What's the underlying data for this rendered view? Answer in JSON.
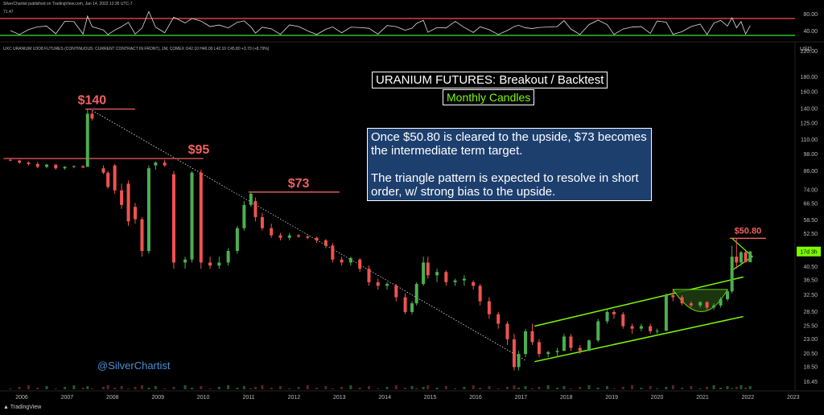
{
  "header": {
    "published": "SilverChartist published on TradingView.com, Jan 14, 2022 12:35 UTC-7",
    "rsi_value": "71.47",
    "symbol_line": "UXC URANIUM U3O8 FUTURES (CONTINUOUS: CURRENT CONTRACT IN FRONT), 1M, COMEX  O42.10 H46.00 L42.10 C45.80 +3.70 (+8.79%)",
    "currency": "USD",
    "logo_text": "TradingView"
  },
  "annotations": {
    "title": "URANIUM FUTURES: Breakout / Backtest",
    "subtitle": "Monthly Candles",
    "note_p1": "Once $50.80 is cleared to the upside, $73 becomes the intermediate term target.",
    "note_p2": "The triangle pattern is expected to resolve in short order, w/ strong bias to the upside.",
    "watermark": "@SilverChartist"
  },
  "colors": {
    "up": "#4caf50",
    "down": "#ef5350",
    "level": "#f06060",
    "channel": "#7CFC00",
    "rsi_upper": "#ff4d4d",
    "rsi_lower": "#39e639",
    "current_badge": "#7CFC00"
  },
  "chart_data": {
    "type": "candlestick",
    "scale": "log",
    "ylim": [
      16.45,
      220
    ],
    "xlim": [
      2005.6,
      2023.4
    ],
    "y_ticks": [
      "220.00",
      "180.00",
      "160.00",
      "140.00",
      "125.00",
      "110.00",
      "98.00",
      "86.00",
      "74.00",
      "66.50",
      "58.50",
      "52.50",
      "46.50",
      "40.50",
      "36.50",
      "32.50",
      "28.50",
      "25.50",
      "23.00",
      "20.50",
      "18.50",
      "16.45"
    ],
    "x_ticks": [
      "2006",
      "2007",
      "2008",
      "2009",
      "2010",
      "2011",
      "2012",
      "2013",
      "2014",
      "2015",
      "2016",
      "2017",
      "2018",
      "2019",
      "2020",
      "2021",
      "2022",
      "2023"
    ],
    "rsi_ticks": [
      "80.00",
      "40.00"
    ],
    "current_price_badge": "17d 3h",
    "levels": [
      {
        "label": "$140",
        "value": 140
      },
      {
        "label": "$95",
        "value": 95
      },
      {
        "label": "$73",
        "value": 73
      },
      {
        "label": "$50.80",
        "value": 50.8
      }
    ],
    "candles": [
      {
        "t": 2005.75,
        "o": 94,
        "h": 95,
        "l": 93,
        "c": 93.5
      },
      {
        "t": 2005.95,
        "o": 93.5,
        "h": 94,
        "l": 91,
        "c": 92
      },
      {
        "t": 2006.15,
        "o": 92,
        "h": 93,
        "l": 90,
        "c": 91
      },
      {
        "t": 2006.35,
        "o": 91,
        "h": 92.5,
        "l": 88,
        "c": 89
      },
      {
        "t": 2006.55,
        "o": 89,
        "h": 91,
        "l": 88,
        "c": 90.5
      },
      {
        "t": 2006.75,
        "o": 90.5,
        "h": 91,
        "l": 87,
        "c": 88
      },
      {
        "t": 2006.95,
        "o": 88,
        "h": 89.5,
        "l": 87,
        "c": 89
      },
      {
        "t": 2007.15,
        "o": 89,
        "h": 90,
        "l": 88,
        "c": 89.5
      },
      {
        "t": 2007.35,
        "o": 89.5,
        "h": 90,
        "l": 88,
        "c": 88.5
      },
      {
        "t": 2007.45,
        "o": 89,
        "h": 140,
        "l": 89,
        "c": 135
      },
      {
        "t": 2007.55,
        "o": 135,
        "h": 138,
        "l": 128,
        "c": 130
      },
      {
        "t": 2007.8,
        "o": 88,
        "h": 90,
        "l": 84,
        "c": 85
      },
      {
        "t": 2007.9,
        "o": 85,
        "h": 86,
        "l": 75,
        "c": 76
      },
      {
        "t": 2008.05,
        "o": 90,
        "h": 91,
        "l": 72,
        "c": 74
      },
      {
        "t": 2008.2,
        "o": 74,
        "h": 78,
        "l": 64,
        "c": 66
      },
      {
        "t": 2008.35,
        "o": 78,
        "h": 80,
        "l": 56,
        "c": 58
      },
      {
        "t": 2008.5,
        "o": 65,
        "h": 67,
        "l": 57,
        "c": 59
      },
      {
        "t": 2008.65,
        "o": 59,
        "h": 60,
        "l": 44,
        "c": 46
      },
      {
        "t": 2008.8,
        "o": 46,
        "h": 90,
        "l": 45,
        "c": 88
      },
      {
        "t": 2008.95,
        "o": 90,
        "h": 93,
        "l": 87,
        "c": 92
      },
      {
        "t": 2009.15,
        "o": 92,
        "h": 94,
        "l": 89,
        "c": 90
      },
      {
        "t": 2009.35,
        "o": 84,
        "h": 86,
        "l": 40,
        "c": 42
      },
      {
        "t": 2009.6,
        "o": 42,
        "h": 44,
        "l": 40,
        "c": 43
      },
      {
        "t": 2009.75,
        "o": 43,
        "h": 86,
        "l": 42,
        "c": 85
      },
      {
        "t": 2009.95,
        "o": 85,
        "h": 87,
        "l": 40,
        "c": 42
      },
      {
        "t": 2010.15,
        "o": 42,
        "h": 44,
        "l": 40,
        "c": 41
      },
      {
        "t": 2010.35,
        "o": 41,
        "h": 44,
        "l": 40,
        "c": 42
      },
      {
        "t": 2010.55,
        "o": 42,
        "h": 47,
        "l": 41,
        "c": 46
      },
      {
        "t": 2010.75,
        "o": 46,
        "h": 56,
        "l": 45,
        "c": 55
      },
      {
        "t": 2010.9,
        "o": 55,
        "h": 68,
        "l": 54,
        "c": 66
      },
      {
        "t": 2011.05,
        "o": 66,
        "h": 73,
        "l": 65,
        "c": 72
      },
      {
        "t": 2011.15,
        "o": 68,
        "h": 70,
        "l": 58,
        "c": 60
      },
      {
        "t": 2011.3,
        "o": 60,
        "h": 62,
        "l": 54,
        "c": 55
      },
      {
        "t": 2011.5,
        "o": 55,
        "h": 57,
        "l": 51,
        "c": 52
      },
      {
        "t": 2011.7,
        "o": 52,
        "h": 53,
        "l": 50,
        "c": 51
      },
      {
        "t": 2011.9,
        "o": 51,
        "h": 53,
        "l": 50,
        "c": 52
      },
      {
        "t": 2012.1,
        "o": 52,
        "h": 52.5,
        "l": 51,
        "c": 51.5
      },
      {
        "t": 2012.3,
        "o": 51.5,
        "h": 52,
        "l": 50.5,
        "c": 51
      },
      {
        "t": 2012.5,
        "o": 51,
        "h": 51.5,
        "l": 49,
        "c": 50
      },
      {
        "t": 2012.7,
        "o": 50,
        "h": 50.5,
        "l": 47,
        "c": 48
      },
      {
        "t": 2012.85,
        "o": 48,
        "h": 49,
        "l": 42,
        "c": 43
      },
      {
        "t": 2013.05,
        "o": 43,
        "h": 44,
        "l": 41,
        "c": 42
      },
      {
        "t": 2013.25,
        "o": 42,
        "h": 44,
        "l": 41,
        "c": 43.5
      },
      {
        "t": 2013.45,
        "o": 43,
        "h": 43.5,
        "l": 39,
        "c": 40
      },
      {
        "t": 2013.65,
        "o": 40,
        "h": 41,
        "l": 35,
        "c": 36
      },
      {
        "t": 2013.85,
        "o": 36,
        "h": 37,
        "l": 34,
        "c": 35
      },
      {
        "t": 2014.05,
        "o": 35,
        "h": 36,
        "l": 34,
        "c": 35.5
      },
      {
        "t": 2014.25,
        "o": 35,
        "h": 35.5,
        "l": 31,
        "c": 32
      },
      {
        "t": 2014.45,
        "o": 32,
        "h": 33,
        "l": 28,
        "c": 28.5
      },
      {
        "t": 2014.6,
        "o": 28.5,
        "h": 31,
        "l": 28,
        "c": 30.5
      },
      {
        "t": 2014.7,
        "o": 30.5,
        "h": 36,
        "l": 30,
        "c": 35.5
      },
      {
        "t": 2014.85,
        "o": 35.5,
        "h": 44,
        "l": 35,
        "c": 42
      },
      {
        "t": 2014.95,
        "o": 42,
        "h": 44,
        "l": 37,
        "c": 38
      },
      {
        "t": 2015.15,
        "o": 38,
        "h": 40,
        "l": 36,
        "c": 39
      },
      {
        "t": 2015.35,
        "o": 39,
        "h": 39.5,
        "l": 35,
        "c": 36
      },
      {
        "t": 2015.55,
        "o": 36,
        "h": 37,
        "l": 35,
        "c": 36.5
      },
      {
        "t": 2015.75,
        "o": 36.5,
        "h": 38,
        "l": 35,
        "c": 37
      },
      {
        "t": 2015.95,
        "o": 36,
        "h": 36.5,
        "l": 34,
        "c": 35
      },
      {
        "t": 2016.1,
        "o": 35,
        "h": 35.5,
        "l": 30,
        "c": 31
      },
      {
        "t": 2016.3,
        "o": 31,
        "h": 32,
        "l": 27,
        "c": 28
      },
      {
        "t": 2016.5,
        "o": 28,
        "h": 28.5,
        "l": 25,
        "c": 26
      },
      {
        "t": 2016.7,
        "o": 26,
        "h": 26.5,
        "l": 22,
        "c": 23
      },
      {
        "t": 2016.85,
        "o": 23,
        "h": 24,
        "l": 18,
        "c": 18.5
      },
      {
        "t": 2016.95,
        "o": 18.5,
        "h": 21,
        "l": 18,
        "c": 20.5
      },
      {
        "t": 2017.1,
        "o": 20.5,
        "h": 25,
        "l": 20,
        "c": 24.5
      },
      {
        "t": 2017.25,
        "o": 24.5,
        "h": 26,
        "l": 22,
        "c": 22.5
      },
      {
        "t": 2017.4,
        "o": 22.5,
        "h": 23,
        "l": 20,
        "c": 20.5
      },
      {
        "t": 2017.6,
        "o": 20.5,
        "h": 21,
        "l": 20,
        "c": 20.8
      },
      {
        "t": 2017.8,
        "o": 20.8,
        "h": 21.5,
        "l": 20,
        "c": 21
      },
      {
        "t": 2017.95,
        "o": 21,
        "h": 24,
        "l": 21,
        "c": 23.5
      },
      {
        "t": 2018.1,
        "o": 23.5,
        "h": 24,
        "l": 21,
        "c": 21.5
      },
      {
        "t": 2018.3,
        "o": 21.5,
        "h": 22,
        "l": 20.5,
        "c": 21
      },
      {
        "t": 2018.5,
        "o": 21,
        "h": 23,
        "l": 21,
        "c": 22.8
      },
      {
        "t": 2018.7,
        "o": 22.8,
        "h": 27,
        "l": 22.5,
        "c": 26.5
      },
      {
        "t": 2018.9,
        "o": 26.5,
        "h": 29,
        "l": 26,
        "c": 28.5
      },
      {
        "t": 2019.05,
        "o": 28.5,
        "h": 29,
        "l": 27,
        "c": 28
      },
      {
        "t": 2019.25,
        "o": 28,
        "h": 28.5,
        "l": 25,
        "c": 25.5
      },
      {
        "t": 2019.45,
        "o": 25.5,
        "h": 26,
        "l": 24,
        "c": 25
      },
      {
        "t": 2019.65,
        "o": 25,
        "h": 26,
        "l": 24.5,
        "c": 25.5
      },
      {
        "t": 2019.85,
        "o": 25.5,
        "h": 26,
        "l": 24,
        "c": 24.5
      },
      {
        "t": 2020.0,
        "o": 24.5,
        "h": 25,
        "l": 24,
        "c": 24.6
      },
      {
        "t": 2020.2,
        "o": 24.6,
        "h": 33,
        "l": 24.5,
        "c": 32.5
      },
      {
        "t": 2020.35,
        "o": 32.5,
        "h": 34,
        "l": 31,
        "c": 32
      },
      {
        "t": 2020.55,
        "o": 32,
        "h": 32.5,
        "l": 30,
        "c": 30.5
      },
      {
        "t": 2020.75,
        "o": 30.5,
        "h": 31,
        "l": 29.5,
        "c": 30
      },
      {
        "t": 2020.95,
        "o": 30,
        "h": 31,
        "l": 29.5,
        "c": 30.8
      },
      {
        "t": 2021.1,
        "o": 30.8,
        "h": 31,
        "l": 29,
        "c": 29.5
      },
      {
        "t": 2021.25,
        "o": 29.5,
        "h": 30.5,
        "l": 29,
        "c": 30
      },
      {
        "t": 2021.4,
        "o": 30,
        "h": 32,
        "l": 29.5,
        "c": 31.5
      },
      {
        "t": 2021.55,
        "o": 31.5,
        "h": 34,
        "l": 31,
        "c": 33.5
      },
      {
        "t": 2021.65,
        "o": 33.5,
        "h": 48,
        "l": 33,
        "c": 44
      },
      {
        "t": 2021.75,
        "o": 44,
        "h": 50.8,
        "l": 40,
        "c": 42
      },
      {
        "t": 2021.85,
        "o": 42,
        "h": 46,
        "l": 41,
        "c": 45.5
      },
      {
        "t": 2021.95,
        "o": 45.5,
        "h": 46,
        "l": 42,
        "c": 42.1
      },
      {
        "t": 2022.05,
        "o": 42.1,
        "h": 46,
        "l": 42.1,
        "c": 45.8
      }
    ]
  }
}
